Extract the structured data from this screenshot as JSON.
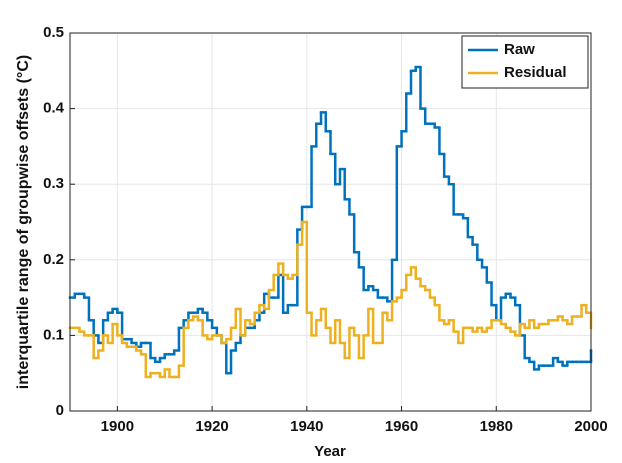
{
  "chart_data": {
    "type": "line",
    "step": true,
    "xlabel": "Year",
    "ylabel": "interquartile range of groupwise offsets (°C)",
    "x": [
      1890,
      1891,
      1892,
      1893,
      1894,
      1895,
      1896,
      1897,
      1898,
      1899,
      1900,
      1901,
      1902,
      1903,
      1904,
      1905,
      1906,
      1907,
      1908,
      1909,
      1910,
      1911,
      1912,
      1913,
      1914,
      1915,
      1916,
      1917,
      1918,
      1919,
      1920,
      1921,
      1922,
      1923,
      1924,
      1925,
      1926,
      1927,
      1928,
      1929,
      1930,
      1931,
      1932,
      1933,
      1934,
      1935,
      1936,
      1937,
      1938,
      1939,
      1940,
      1941,
      1942,
      1943,
      1944,
      1945,
      1946,
      1947,
      1948,
      1949,
      1950,
      1951,
      1952,
      1953,
      1954,
      1955,
      1956,
      1957,
      1958,
      1959,
      1960,
      1961,
      1962,
      1963,
      1964,
      1965,
      1966,
      1967,
      1968,
      1969,
      1970,
      1971,
      1972,
      1973,
      1974,
      1975,
      1976,
      1977,
      1978,
      1979,
      1980,
      1981,
      1982,
      1983,
      1984,
      1985,
      1986,
      1987,
      1988,
      1989,
      1990,
      1991,
      1992,
      1993,
      1994,
      1995,
      1996,
      1997,
      1998,
      1999,
      2000
    ],
    "series": [
      {
        "name": "Raw",
        "color": "#0072bd",
        "values": [
          0.15,
          0.155,
          0.155,
          0.15,
          0.12,
          0.1,
          0.09,
          0.12,
          0.13,
          0.135,
          0.13,
          0.095,
          0.095,
          0.09,
          0.085,
          0.09,
          0.09,
          0.07,
          0.065,
          0.07,
          0.075,
          0.075,
          0.08,
          0.11,
          0.12,
          0.13,
          0.13,
          0.135,
          0.13,
          0.12,
          0.11,
          0.1,
          0.09,
          0.05,
          0.08,
          0.09,
          0.1,
          0.11,
          0.11,
          0.12,
          0.13,
          0.155,
          0.15,
          0.15,
          0.18,
          0.13,
          0.14,
          0.14,
          0.24,
          0.27,
          0.27,
          0.35,
          0.38,
          0.395,
          0.37,
          0.34,
          0.3,
          0.32,
          0.28,
          0.26,
          0.21,
          0.19,
          0.16,
          0.165,
          0.16,
          0.15,
          0.15,
          0.145,
          0.2,
          0.35,
          0.37,
          0.42,
          0.45,
          0.455,
          0.4,
          0.38,
          0.38,
          0.375,
          0.34,
          0.31,
          0.3,
          0.26,
          0.26,
          0.255,
          0.23,
          0.22,
          0.2,
          0.19,
          0.17,
          0.14,
          0.12,
          0.15,
          0.155,
          0.15,
          0.14,
          0.1,
          0.07,
          0.065,
          0.055,
          0.06,
          0.06,
          0.06,
          0.07,
          0.065,
          0.06,
          0.065,
          0.065,
          0.065,
          0.065,
          0.065,
          0.08
        ]
      },
      {
        "name": "Residual",
        "color": "#edb120",
        "values": [
          0.11,
          0.11,
          0.105,
          0.1,
          0.1,
          0.07,
          0.08,
          0.1,
          0.09,
          0.115,
          0.1,
          0.09,
          0.085,
          0.085,
          0.08,
          0.075,
          0.045,
          0.05,
          0.05,
          0.045,
          0.055,
          0.045,
          0.045,
          0.06,
          0.11,
          0.12,
          0.125,
          0.12,
          0.1,
          0.095,
          0.1,
          0.1,
          0.09,
          0.095,
          0.11,
          0.135,
          0.1,
          0.12,
          0.115,
          0.13,
          0.14,
          0.135,
          0.16,
          0.18,
          0.195,
          0.18,
          0.175,
          0.18,
          0.22,
          0.25,
          0.13,
          0.1,
          0.12,
          0.135,
          0.11,
          0.09,
          0.12,
          0.09,
          0.07,
          0.11,
          0.1,
          0.07,
          0.1,
          0.135,
          0.09,
          0.09,
          0.13,
          0.12,
          0.145,
          0.15,
          0.16,
          0.18,
          0.19,
          0.175,
          0.165,
          0.16,
          0.15,
          0.14,
          0.12,
          0.115,
          0.12,
          0.105,
          0.09,
          0.11,
          0.11,
          0.105,
          0.11,
          0.105,
          0.11,
          0.12,
          0.12,
          0.115,
          0.11,
          0.105,
          0.1,
          0.115,
          0.11,
          0.12,
          0.11,
          0.115,
          0.115,
          0.12,
          0.12,
          0.125,
          0.12,
          0.115,
          0.125,
          0.125,
          0.14,
          0.13,
          0.11
        ]
      }
    ],
    "xlim": [
      1890,
      2000
    ],
    "ylim": [
      0,
      0.5
    ],
    "xticks": [
      1900,
      1920,
      1940,
      1960,
      1980,
      2000
    ],
    "yticks": [
      0,
      0.1,
      0.2,
      0.3,
      0.4,
      0.5
    ],
    "grid": true,
    "legend": "upper right"
  }
}
